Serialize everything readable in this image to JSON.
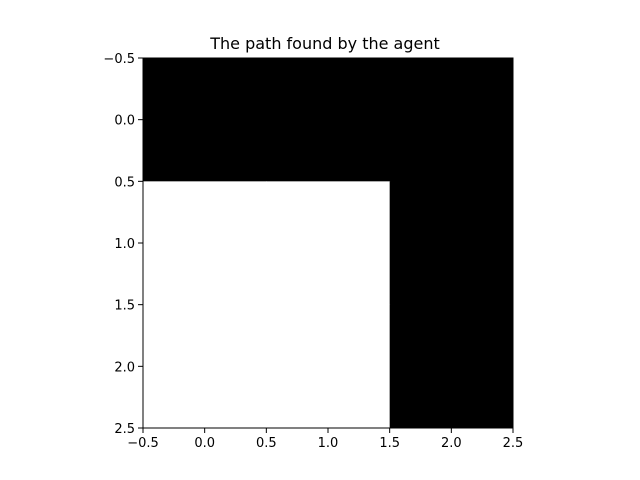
{
  "chart_data": {
    "type": "heatmap",
    "title": "The path found by the agent",
    "xlabel": "",
    "ylabel": "",
    "xlim": [
      -0.5,
      2.5
    ],
    "ylim": [
      2.5,
      -0.5
    ],
    "grid": false,
    "colormap": "grayscale",
    "colors": {
      "path": "#000000",
      "empty": "#ffffff",
      "axes": "#000000"
    },
    "grid_values": [
      [
        1,
        1,
        1
      ],
      [
        0,
        0,
        1
      ],
      [
        0,
        0,
        1
      ]
    ],
    "xticks": [
      {
        "value": -0.5,
        "label": "−0.5"
      },
      {
        "value": 0.0,
        "label": "0.0"
      },
      {
        "value": 0.5,
        "label": "0.5"
      },
      {
        "value": 1.0,
        "label": "1.0"
      },
      {
        "value": 1.5,
        "label": "1.5"
      },
      {
        "value": 2.0,
        "label": "2.0"
      },
      {
        "value": 2.5,
        "label": "2.5"
      }
    ],
    "yticks": [
      {
        "value": -0.5,
        "label": "−0.5"
      },
      {
        "value": 0.0,
        "label": "0.0"
      },
      {
        "value": 0.5,
        "label": "0.5"
      },
      {
        "value": 1.0,
        "label": "1.0"
      },
      {
        "value": 1.5,
        "label": "1.5"
      },
      {
        "value": 2.0,
        "label": "2.0"
      },
      {
        "value": 2.5,
        "label": "2.5"
      }
    ]
  }
}
